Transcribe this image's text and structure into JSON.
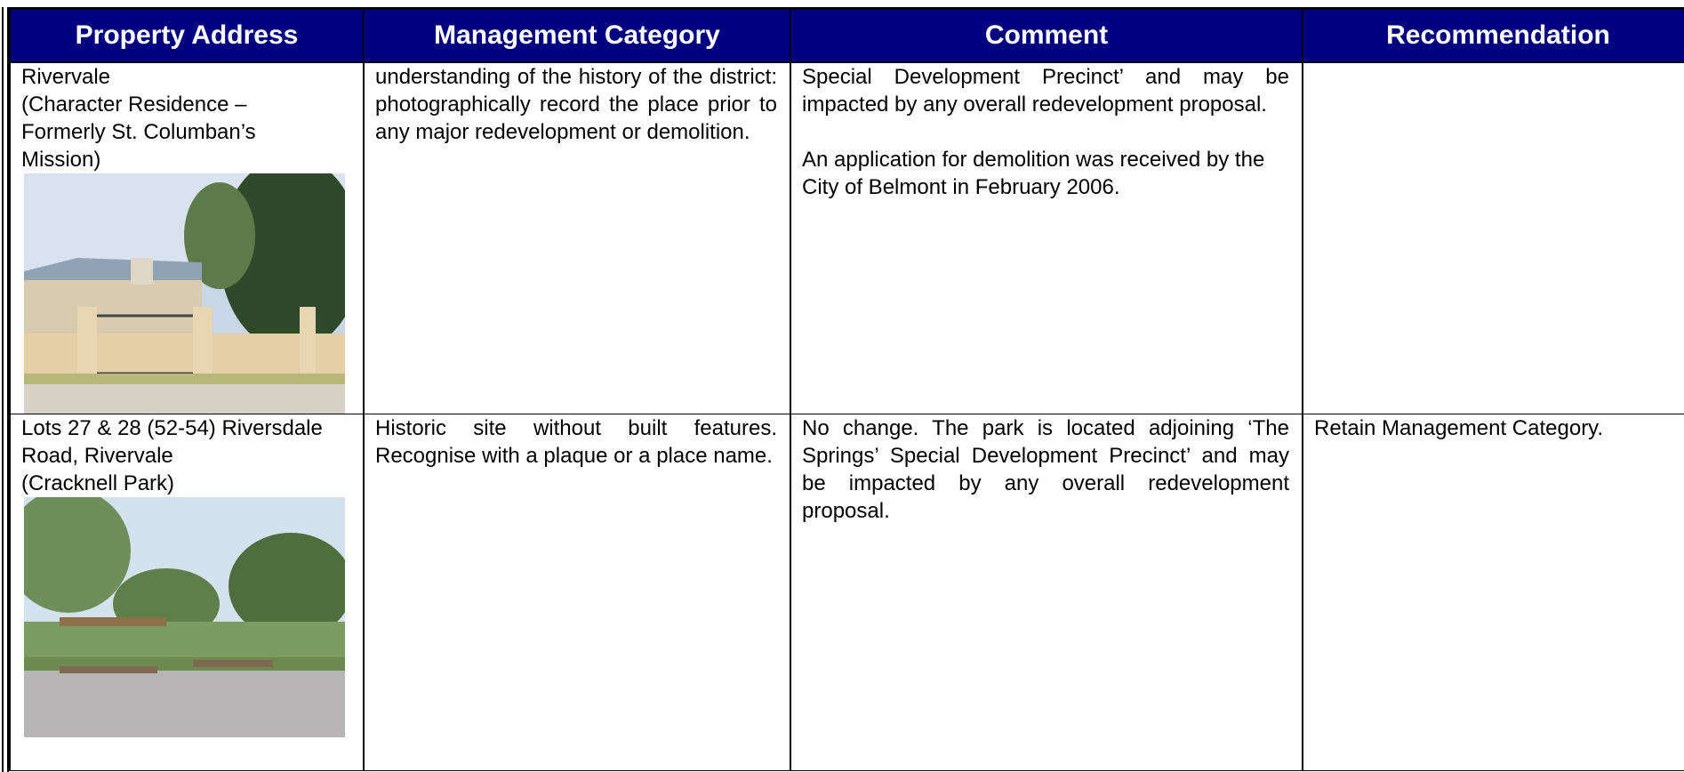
{
  "table": {
    "headers": [
      "Property Address",
      "Management Category",
      "Comment",
      "Recommendation"
    ],
    "rows": [
      {
        "address": [
          "Rivervale",
          "(Character Residence – Formerly St. Columban’s Mission)"
        ],
        "category": [
          "understanding of the history of the district: photographically record the place prior to any major redevelopment or demolition."
        ],
        "comment": [
          "Special Development Precinct’ and may be impacted by any overall redevelopment proposal.",
          "An application for demolition was received by the City of Belmont in February 2006."
        ],
        "recommendation": []
      },
      {
        "address": [
          "Lots 27 & 28 (52-54) Riversdale Road, Rivervale",
          "(Cracknell Park)"
        ],
        "category": [
          "Historic site without built features. Recognise with a plaque or a place name."
        ],
        "comment": [
          "No change.  The park is located adjoining ‘The Springs’ Special Development Precinct’ and may be impacted by any overall redevelopment proposal."
        ],
        "recommendation": [
          "Retain Management Category."
        ]
      }
    ]
  }
}
